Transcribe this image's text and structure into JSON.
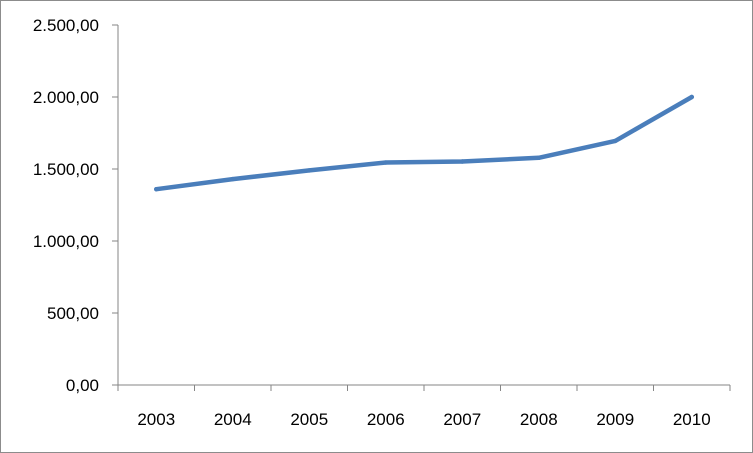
{
  "chart_data": {
    "type": "line",
    "title": "",
    "xlabel": "",
    "ylabel": "",
    "categories": [
      "2003",
      "2004",
      "2005",
      "2006",
      "2007",
      "2008",
      "2009",
      "2010"
    ],
    "series": [
      {
        "values": [
          1360,
          1430,
          1490,
          1545,
          1552,
          1578,
          1695,
          2000
        ],
        "color": "#4a7ebb"
      }
    ],
    "ylim": [
      0,
      2500
    ],
    "y_ticks": [
      0,
      500,
      1000,
      1500,
      2000,
      2500
    ],
    "y_tick_labels": [
      "0,00",
      "500,00",
      "1.000,00",
      "1.500,00",
      "2.000,00",
      "2.500,00"
    ],
    "grid": false,
    "legend": "none"
  }
}
